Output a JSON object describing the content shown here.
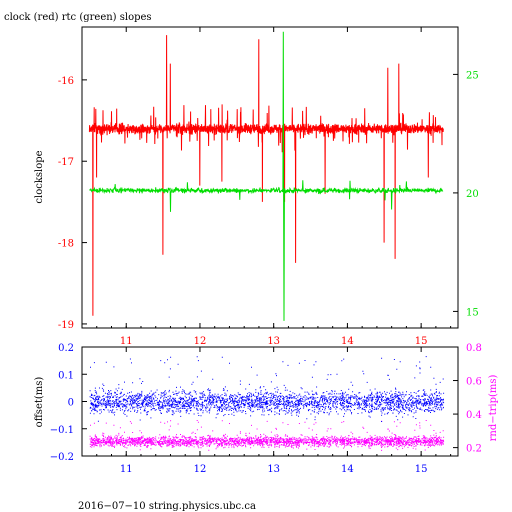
{
  "colors": {
    "clock": "#ff0000",
    "rtc": "#00dd00",
    "offset": "#0000ff",
    "roundtrip": "#ff00ff",
    "frame": "#000000"
  },
  "chart_data": [
    {
      "type": "line",
      "title": "clock (red) rtc (green) slopes",
      "ylabel": "clockslope",
      "xlim": [
        10.4,
        15.5
      ],
      "ylim": [
        -19.05,
        -15.35
      ],
      "x_ticks": [
        11,
        12,
        13,
        14,
        15
      ],
      "x_tick_labels": [
        "11",
        "12",
        "13",
        "14",
        "15"
      ],
      "y_ticks": [
        -16,
        -17,
        -18,
        -19
      ],
      "y_tick_labels": [
        "-16",
        "-17",
        "-18",
        "-19"
      ],
      "y2lim": [
        14.3,
        27.0
      ],
      "y2_ticks": [
        25,
        20,
        15
      ],
      "y2_tick_labels": [
        "25",
        "20",
        "15"
      ],
      "grid": false,
      "series": [
        {
          "name": "clock",
          "axis": "left",
          "color": "#ff0000",
          "baseline": -16.6,
          "noise": 0.06,
          "x_range": [
            10.5,
            15.3
          ],
          "spikes": [
            {
              "x": 10.55,
              "y": -18.9
            },
            {
              "x": 10.6,
              "y": -17.2
            },
            {
              "x": 11.5,
              "y": -18.15
            },
            {
              "x": 11.55,
              "y": -15.45
            },
            {
              "x": 11.6,
              "y": -15.8
            },
            {
              "x": 12.0,
              "y": -17.3
            },
            {
              "x": 12.3,
              "y": -17.25
            },
            {
              "x": 12.8,
              "y": -15.5
            },
            {
              "x": 12.85,
              "y": -17.5
            },
            {
              "x": 13.15,
              "y": -17.5
            },
            {
              "x": 13.3,
              "y": -18.25
            },
            {
              "x": 13.7,
              "y": -17.4
            },
            {
              "x": 14.5,
              "y": -18.0
            },
            {
              "x": 14.55,
              "y": -15.85
            },
            {
              "x": 14.65,
              "y": -18.2
            },
            {
              "x": 14.7,
              "y": -15.8
            },
            {
              "x": 15.1,
              "y": -17.2
            }
          ]
        },
        {
          "name": "rtc",
          "axis": "right",
          "color": "#00dd00",
          "baseline": 20.1,
          "noise": 0.1,
          "x_range": [
            10.5,
            15.3
          ],
          "spikes": [
            {
              "x": 13.13,
              "y": 26.8
            },
            {
              "x": 13.14,
              "y": 14.6
            },
            {
              "x": 11.6,
              "y": 19.2
            },
            {
              "x": 14.6,
              "y": 19.3
            }
          ]
        }
      ]
    },
    {
      "type": "scatter",
      "ylabel": "offset(ms)",
      "y2label": "rnd−trip(ms)",
      "xlim": [
        10.4,
        15.5
      ],
      "ylim": [
        -0.2,
        0.2
      ],
      "x_ticks": [
        11,
        12,
        13,
        14,
        15
      ],
      "x_tick_labels": [
        "11",
        "12",
        "13",
        "14",
        "15"
      ],
      "y_ticks": [
        0.2,
        0.1,
        0,
        -0.1,
        -0.2
      ],
      "y_tick_labels": [
        "0.2",
        "0.1",
        "0",
        "−0.1",
        "−0.2"
      ],
      "y2lim": [
        0.15,
        0.8
      ],
      "y2_ticks": [
        0.8,
        0.6,
        0.4,
        0.2
      ],
      "y2_tick_labels": [
        "0.8",
        "0.6",
        "0.4",
        "0.2"
      ],
      "grid": false,
      "series": [
        {
          "name": "offset",
          "axis": "left",
          "color": "#0000ff",
          "center": 0.0,
          "spread": 0.04,
          "x_range": [
            10.5,
            15.3
          ]
        },
        {
          "name": "roundtrip",
          "axis": "right",
          "color": "#ff00ff",
          "center": 0.24,
          "spread": 0.03,
          "x_range": [
            10.5,
            15.3
          ]
        }
      ]
    }
  ],
  "footer": "2016−07−10 string.physics.ubc.ca"
}
